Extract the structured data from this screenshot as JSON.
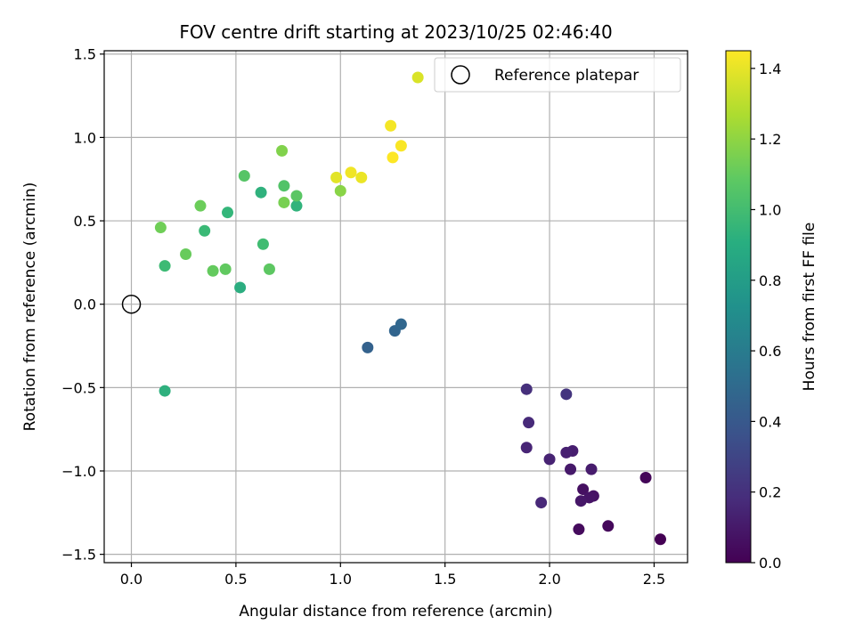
{
  "chart_data": {
    "type": "scatter",
    "title": "FOV centre drift starting at 2023/10/25 02:46:40",
    "xlabel": "Angular distance from reference (arcmin)",
    "ylabel": "Rotation from reference (arcmin)",
    "xlim": [
      -0.13,
      2.66
    ],
    "ylim": [
      -1.55,
      1.52
    ],
    "xticks": [
      0.0,
      0.5,
      1.0,
      1.5,
      2.0,
      2.5
    ],
    "xtick_labels": [
      "0.0",
      "0.5",
      "1.0",
      "1.5",
      "2.0",
      "2.5"
    ],
    "yticks": [
      -1.5,
      -1.0,
      -0.5,
      0.0,
      0.5,
      1.0,
      1.5
    ],
    "ytick_labels": [
      "−1.5",
      "−1.0",
      "−0.5",
      "0.0",
      "0.5",
      "1.0",
      "1.5"
    ],
    "grid": true,
    "legend": {
      "placement": "upper right",
      "entries": [
        "Reference platepar"
      ]
    },
    "reference_point": {
      "label": "Reference platepar",
      "x": 0.0,
      "y": 0.0
    },
    "colorbar": {
      "label": "Hours from first FF file",
      "colormap": "viridis",
      "range": [
        0.0,
        1.45
      ],
      "ticks": [
        0.0,
        0.2,
        0.4,
        0.6,
        0.8,
        1.0,
        1.2,
        1.4
      ],
      "tick_labels": [
        "0.0",
        "0.2",
        "0.4",
        "0.6",
        "0.8",
        "1.0",
        "1.2",
        "1.4"
      ]
    },
    "points": [
      {
        "x": 2.53,
        "y": -1.41,
        "c": 0.0
      },
      {
        "x": 2.46,
        "y": -1.04,
        "c": 0.02
      },
      {
        "x": 2.28,
        "y": -1.33,
        "c": 0.03
      },
      {
        "x": 2.14,
        "y": -1.35,
        "c": 0.04
      },
      {
        "x": 2.16,
        "y": -1.11,
        "c": 0.06
      },
      {
        "x": 2.21,
        "y": -1.15,
        "c": 0.07
      },
      {
        "x": 2.19,
        "y": -1.16,
        "c": 0.08
      },
      {
        "x": 2.15,
        "y": -1.18,
        "c": 0.09
      },
      {
        "x": 2.1,
        "y": -0.99,
        "c": 0.1
      },
      {
        "x": 2.2,
        "y": -0.99,
        "c": 0.11
      },
      {
        "x": 2.11,
        "y": -0.88,
        "c": 0.12
      },
      {
        "x": 2.08,
        "y": -0.89,
        "c": 0.13
      },
      {
        "x": 2.0,
        "y": -0.93,
        "c": 0.14
      },
      {
        "x": 1.89,
        "y": -0.86,
        "c": 0.15
      },
      {
        "x": 1.96,
        "y": -1.19,
        "c": 0.16
      },
      {
        "x": 1.9,
        "y": -0.71,
        "c": 0.17
      },
      {
        "x": 1.89,
        "y": -0.51,
        "c": 0.2
      },
      {
        "x": 2.08,
        "y": -0.54,
        "c": 0.22
      },
      {
        "x": 1.13,
        "y": -0.26,
        "c": 0.45
      },
      {
        "x": 1.26,
        "y": -0.16,
        "c": 0.47
      },
      {
        "x": 1.29,
        "y": -0.12,
        "c": 0.48
      },
      {
        "x": 0.52,
        "y": 0.1,
        "c": 0.9
      },
      {
        "x": 0.16,
        "y": -0.52,
        "c": 0.92
      },
      {
        "x": 0.62,
        "y": 0.67,
        "c": 0.93
      },
      {
        "x": 0.79,
        "y": 0.59,
        "c": 0.94
      },
      {
        "x": 0.46,
        "y": 0.55,
        "c": 0.96
      },
      {
        "x": 0.35,
        "y": 0.44,
        "c": 0.98
      },
      {
        "x": 0.16,
        "y": 0.23,
        "c": 0.99
      },
      {
        "x": 0.63,
        "y": 0.36,
        "c": 1.0
      },
      {
        "x": 0.73,
        "y": 0.71,
        "c": 1.05
      },
      {
        "x": 0.54,
        "y": 0.77,
        "c": 1.06
      },
      {
        "x": 0.79,
        "y": 0.65,
        "c": 1.07
      },
      {
        "x": 0.66,
        "y": 0.21,
        "c": 1.08
      },
      {
        "x": 0.45,
        "y": 0.21,
        "c": 1.09
      },
      {
        "x": 0.39,
        "y": 0.2,
        "c": 1.1
      },
      {
        "x": 0.26,
        "y": 0.3,
        "c": 1.11
      },
      {
        "x": 0.33,
        "y": 0.59,
        "c": 1.12
      },
      {
        "x": 0.14,
        "y": 0.46,
        "c": 1.13
      },
      {
        "x": 0.73,
        "y": 0.61,
        "c": 1.15
      },
      {
        "x": 0.72,
        "y": 0.92,
        "c": 1.17
      },
      {
        "x": 1.0,
        "y": 0.68,
        "c": 1.19
      },
      {
        "x": 0.98,
        "y": 0.76,
        "c": 1.39
      },
      {
        "x": 1.1,
        "y": 0.76,
        "c": 1.41
      },
      {
        "x": 1.05,
        "y": 0.79,
        "c": 1.42
      },
      {
        "x": 1.24,
        "y": 1.07,
        "c": 1.43
      },
      {
        "x": 1.29,
        "y": 0.95,
        "c": 1.44
      },
      {
        "x": 1.25,
        "y": 0.88,
        "c": 1.45
      },
      {
        "x": 1.37,
        "y": 1.36,
        "c": 1.37
      }
    ]
  }
}
